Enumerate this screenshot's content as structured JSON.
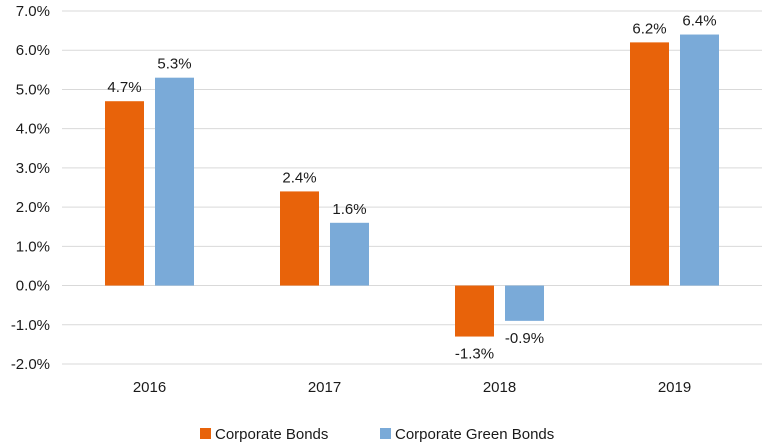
{
  "chart_data": {
    "type": "bar",
    "title": "",
    "xlabel": "",
    "ylabel": "",
    "categories": [
      "2016",
      "2017",
      "2018",
      "2019"
    ],
    "series": [
      {
        "name": "Corporate Bonds",
        "color": "#E8630A",
        "values": [
          4.7,
          2.4,
          -1.3,
          6.2
        ],
        "labels": [
          "4.7%",
          "2.4%",
          "-1.3%",
          "6.2%"
        ]
      },
      {
        "name": "Corporate Green Bonds",
        "color": "#7AAAD8",
        "values": [
          5.3,
          1.6,
          -0.9,
          6.4
        ],
        "labels": [
          "5.3%",
          "1.6%",
          "-0.9%",
          "6.4%"
        ]
      }
    ],
    "ylim": [
      -2.0,
      7.0
    ],
    "y_ticks": [
      -2.0,
      -1.0,
      0.0,
      1.0,
      2.0,
      3.0,
      4.0,
      5.0,
      6.0,
      7.0
    ],
    "y_tick_labels": [
      "-2.0%",
      "-1.0%",
      "0.0%",
      "1.0%",
      "2.0%",
      "3.0%",
      "4.0%",
      "5.0%",
      "6.0%",
      "7.0%"
    ],
    "grid": true,
    "legend_position": "bottom"
  }
}
